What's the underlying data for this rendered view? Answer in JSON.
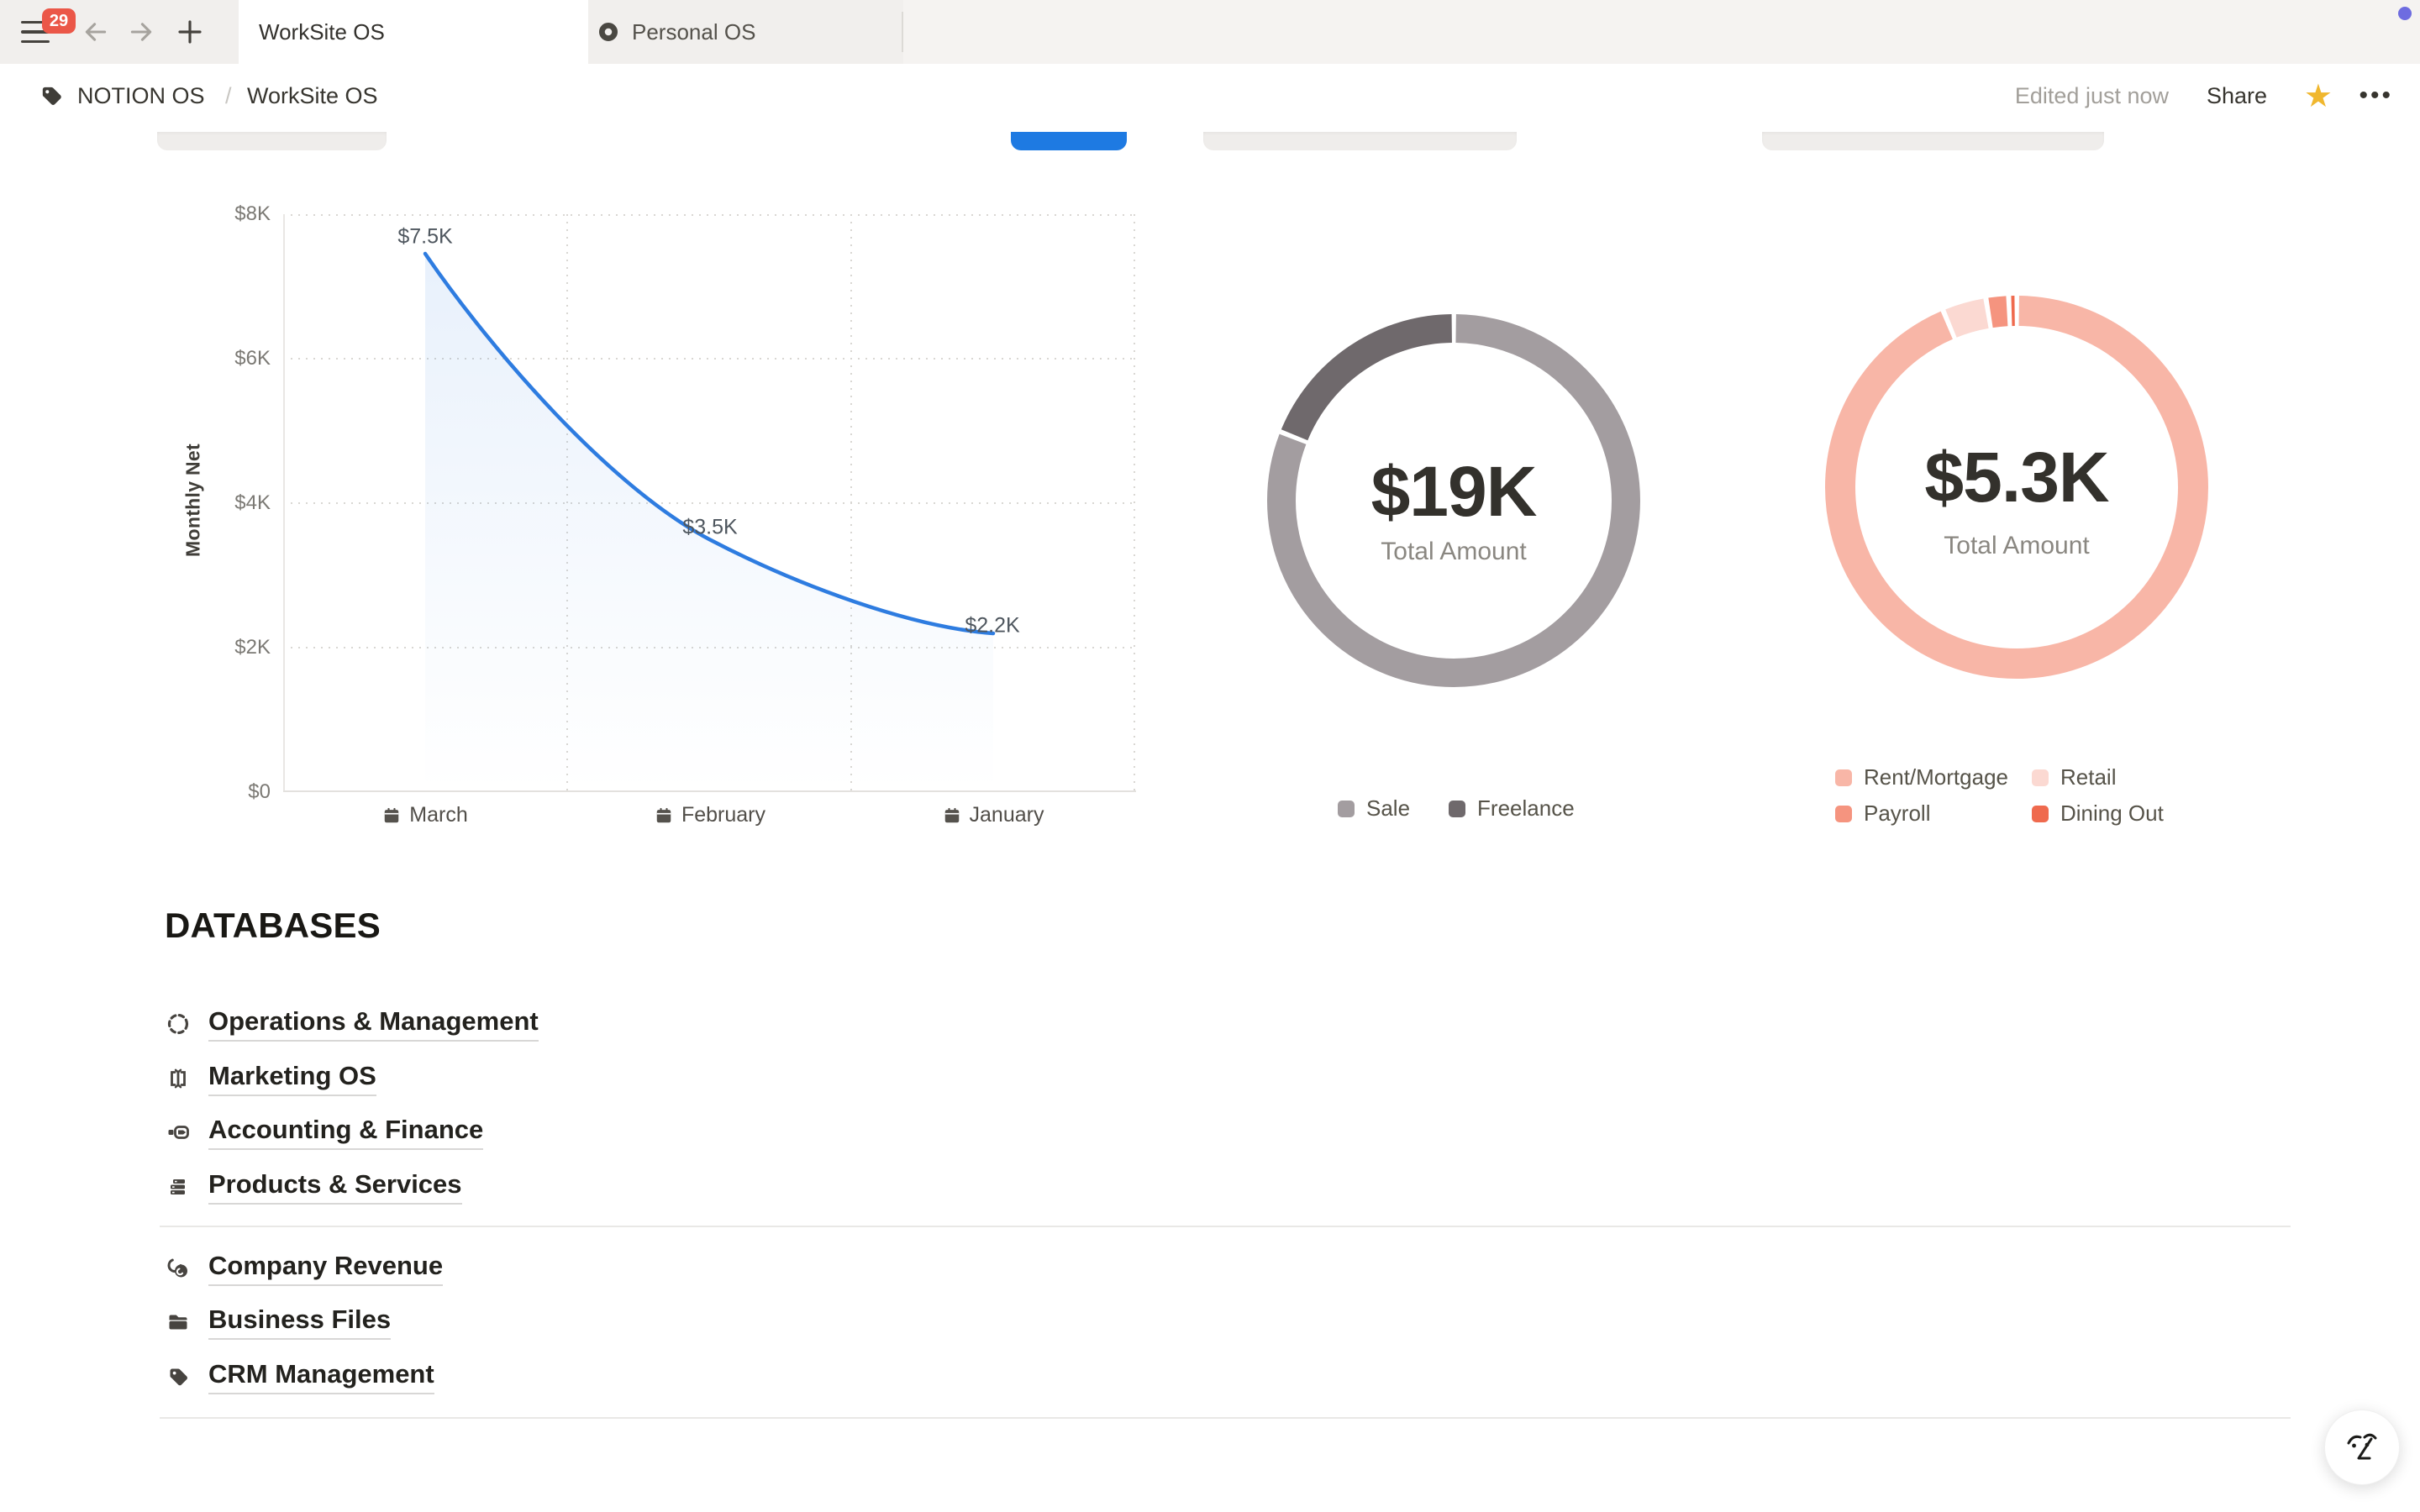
{
  "tabbar": {
    "badge_count": "29",
    "tabs": [
      {
        "label": "WorkSite OS",
        "active": true
      },
      {
        "label": "Personal OS",
        "active": false
      }
    ]
  },
  "breadcrumb": {
    "root": "NOTION OS",
    "separator": "/",
    "current": "WorkSite OS"
  },
  "header_actions": {
    "edited_status": "Edited just now",
    "share_label": "Share",
    "star_state": "favorited",
    "more_label": "•••"
  },
  "accent_colors": {
    "primary_blue": "#1e7ae2",
    "badge_red": "#eb5748",
    "star_yellow": "#f0b72e",
    "notification_dot": "#6e6ce0"
  },
  "chart_data": [
    {
      "type": "line",
      "ylabel": "Monthly Net",
      "categories": [
        "March",
        "February",
        "January"
      ],
      "values": [
        7500,
        3500,
        2200
      ],
      "point_labels": [
        "$7.5K",
        "$3.5K",
        "$2.2K"
      ],
      "ytick_labels": [
        "$8K",
        "$6K",
        "$4K",
        "$2K",
        "$0"
      ],
      "ylim": [
        0,
        8000
      ],
      "grid": "dotted",
      "line_color": "#2e7ce0",
      "fill": "light-blue-gradient"
    },
    {
      "type": "donut",
      "center_value": "$19K",
      "center_label": "Total Amount",
      "legend_position": "bottom",
      "segments": [
        {
          "name": "Sale",
          "pct": 81,
          "color": "#a39da0"
        },
        {
          "name": "Freelance",
          "pct": 19,
          "color": "#6f696c"
        }
      ]
    },
    {
      "type": "donut",
      "center_value": "$5.3K",
      "center_label": "Total Amount",
      "legend_position": "bottom",
      "segments": [
        {
          "name": "Rent/Mortgage",
          "pct": 93.7,
          "color": "#f8b6a7"
        },
        {
          "name": "Retail",
          "pct": 3.7,
          "color": "#fbd9d2"
        },
        {
          "name": "Payroll",
          "pct": 1.9,
          "color": "#f5947f"
        },
        {
          "name": "Dining Out",
          "pct": 0.7,
          "color": "#ef6a4e"
        }
      ]
    }
  ],
  "databases": {
    "heading": "DATABASES",
    "sections": [
      {
        "items": [
          {
            "label": "Operations & Management",
            "icon": "dashed-circle"
          },
          {
            "label": "Marketing OS",
            "icon": "ab-test"
          },
          {
            "label": "Accounting & Finance",
            "icon": "transfer"
          },
          {
            "label": "Products & Services",
            "icon": "stack"
          }
        ]
      },
      {
        "items": [
          {
            "label": "Company Revenue",
            "icon": "coins"
          },
          {
            "label": "Business Files",
            "icon": "folder"
          },
          {
            "label": "CRM Management",
            "icon": "tag"
          }
        ]
      }
    ]
  },
  "ai_button": {
    "icon": "notion-ai-face"
  }
}
